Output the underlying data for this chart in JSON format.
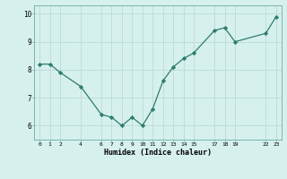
{
  "x": [
    0,
    1,
    2,
    4,
    6,
    7,
    8,
    9,
    10,
    11,
    12,
    13,
    14,
    15,
    17,
    18,
    19,
    22,
    23
  ],
  "y": [
    8.2,
    8.2,
    7.9,
    7.4,
    6.4,
    6.3,
    6.0,
    6.3,
    6.0,
    6.6,
    7.6,
    8.1,
    8.4,
    8.6,
    9.4,
    9.5,
    9.0,
    9.3,
    9.9
  ],
  "x_ticks": [
    0,
    1,
    2,
    4,
    6,
    7,
    8,
    9,
    10,
    11,
    12,
    13,
    14,
    15,
    17,
    18,
    19,
    22,
    23
  ],
  "x_tick_labels": [
    "0",
    "1",
    "2",
    "4",
    "6",
    "7",
    "8",
    "9",
    "10",
    "11",
    "12",
    "13",
    "14",
    "15",
    "17",
    "18",
    "19",
    "22",
    "23"
  ],
  "ylim": [
    5.5,
    10.3
  ],
  "yticks": [
    6,
    7,
    8,
    9,
    10
  ],
  "xlabel": "Humidex (Indice chaleur)",
  "line_color": "#2d7d6e",
  "marker_color": "#2d7d6e",
  "bg_color": "#d6f0ee",
  "grid_color": "#c0ddd8",
  "figsize": [
    3.2,
    2.0
  ],
  "dpi": 100
}
